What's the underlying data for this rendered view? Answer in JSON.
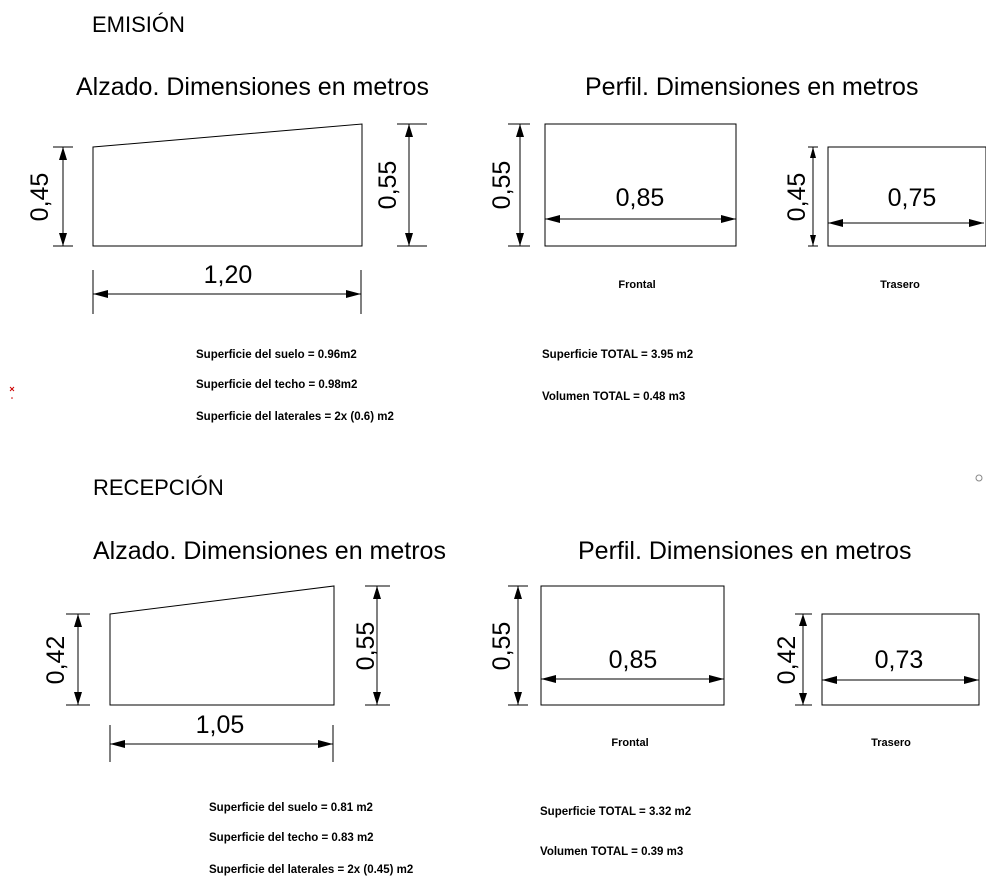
{
  "emision": {
    "title": "EMISIÓN",
    "alzado_title": "Alzado. Dimensiones en metros",
    "perfil_title": "Perfil. Dimensiones en metros",
    "height_left": "0,45",
    "height_right": "0,55",
    "length": "1,20",
    "frontal_height": "0,55",
    "frontal_width": "0,85",
    "frontal_label": "Frontal",
    "trasero_height": "0,45",
    "trasero_width": "0,75",
    "trasero_label": "Trasero",
    "notes": [
      "Superficie del suelo = 0.96m2",
      "Superficie del techo = 0.98m2",
      "Superficie del laterales = 2x (0.6) m2"
    ],
    "totals": [
      "Superficie TOTAL = 3.95 m2",
      "Volumen TOTAL = 0.48 m3"
    ]
  },
  "recepcion": {
    "title": "RECEPCIÓN",
    "alzado_title": "Alzado. Dimensiones en metros",
    "perfil_title": "Perfil. Dimensiones en metros",
    "height_left": "0,42",
    "height_right": "0,55",
    "length": "1,05",
    "frontal_height": "0,55",
    "frontal_width": "0,85",
    "frontal_label": "Frontal",
    "trasero_height": "0,42",
    "trasero_width": "0,73",
    "trasero_label": "Trasero",
    "notes": [
      "Superficie del suelo = 0.81 m2",
      "Superficie del techo = 0.83 m2",
      "Superficie del laterales = 2x (0.45) m2"
    ],
    "totals": [
      "Superficie TOTAL = 3.32 m2",
      "Volumen TOTAL = 0.39 m3"
    ]
  }
}
